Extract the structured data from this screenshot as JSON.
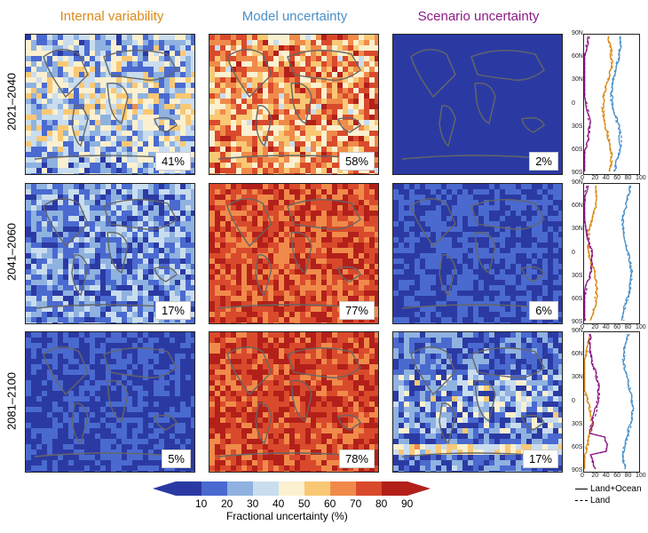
{
  "columns": [
    {
      "title": "Internal variability",
      "color": "#d98a1a"
    },
    {
      "title": "Model uncertainty",
      "color": "#4a90c8"
    },
    {
      "title": "Scenario uncertainty",
      "color": "#8c1a86"
    }
  ],
  "rows": [
    {
      "label": "2021–2040",
      "values": [
        "41%",
        "58%",
        "2%"
      ]
    },
    {
      "label": "2041–2060",
      "values": [
        "17%",
        "77%",
        "6%"
      ]
    },
    {
      "label": "2081–2100",
      "values": [
        "5%",
        "78%",
        "17%"
      ]
    }
  ],
  "zonal": {
    "lat_ticks": [
      "90N",
      "60N",
      "30N",
      "0",
      "30S",
      "60S",
      "90S"
    ],
    "x_ticks": [
      "0",
      "20",
      "40",
      "60",
      "80",
      "100"
    ]
  },
  "colorbar": {
    "ticks": [
      "10",
      "20",
      "30",
      "40",
      "50",
      "60",
      "70",
      "80",
      "90"
    ],
    "label": "Fractional uncertainty (%)",
    "colors": [
      "#2b3aa3",
      "#4a6ad0",
      "#8fb2e0",
      "#c9ddef",
      "#fbf0cf",
      "#f9c874",
      "#f08a4a",
      "#d94a2c",
      "#b3201a"
    ]
  },
  "legend": {
    "land_ocean": "Land+Ocean",
    "land": "Land"
  },
  "chart_data": {
    "type": "heatmap",
    "title": "",
    "panels": [
      {
        "period": "2021–2040",
        "source": "Internal variability",
        "global_fraction": 41
      },
      {
        "period": "2021–2040",
        "source": "Model uncertainty",
        "global_fraction": 58
      },
      {
        "period": "2021–2040",
        "source": "Scenario uncertainty",
        "global_fraction": 2
      },
      {
        "period": "2041–2060",
        "source": "Internal variability",
        "global_fraction": 17
      },
      {
        "period": "2041–2060",
        "source": "Model uncertainty",
        "global_fraction": 77
      },
      {
        "period": "2041–2060",
        "source": "Scenario uncertainty",
        "global_fraction": 6
      },
      {
        "period": "2081–2100",
        "source": "Internal variability",
        "global_fraction": 5
      },
      {
        "period": "2081–2100",
        "source": "Model uncertainty",
        "global_fraction": 78
      },
      {
        "period": "2081–2100",
        "source": "Scenario uncertainty",
        "global_fraction": 17
      }
    ],
    "colorbar_range": [
      10,
      90
    ],
    "colorbar_label": "Fractional uncertainty (%)"
  }
}
